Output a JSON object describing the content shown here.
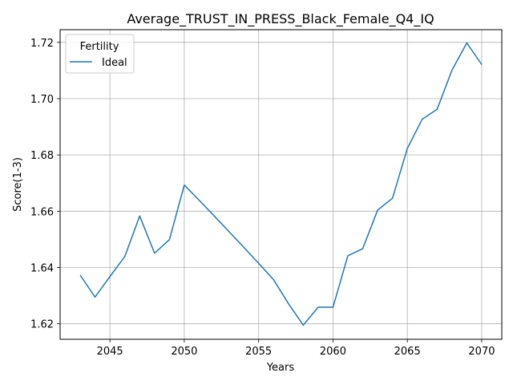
{
  "chart_data": {
    "type": "line",
    "title": "Average_TRUST_IN_PRESS_Black_Female_Q4_IQ",
    "xlabel": "Years",
    "ylabel": "Score(1-3)",
    "xlim": [
      2041.65,
      2071.35
    ],
    "ylim": [
      1.6145,
      1.7245
    ],
    "xticks": [
      2045,
      2050,
      2055,
      2060,
      2065,
      2070
    ],
    "yticks": [
      1.62,
      1.64,
      1.66,
      1.68,
      1.7,
      1.72
    ],
    "ytick_labels": [
      "1.62",
      "1.64",
      "1.66",
      "1.68",
      "1.70",
      "1.72"
    ],
    "grid": true,
    "legend": {
      "title": "Fertility",
      "placement": "top-left"
    },
    "series": [
      {
        "name": "Ideal",
        "color": "#1f77b4",
        "x": [
          2043,
          2044,
          2045,
          2046,
          2047,
          2048,
          2049,
          2050,
          2051,
          2052,
          2053,
          2054,
          2055,
          2056,
          2057,
          2058,
          2059,
          2060,
          2061,
          2062,
          2063,
          2064,
          2065,
          2066,
          2067,
          2068,
          2069,
          2070
        ],
        "y": [
          1.6373,
          1.6295,
          1.6368,
          1.6439,
          1.6583,
          1.6451,
          1.6499,
          1.6693,
          1.6639,
          1.6584,
          1.6528,
          1.6472,
          1.6415,
          1.6357,
          1.6272,
          1.6195,
          1.6259,
          1.6259,
          1.6442,
          1.6467,
          1.6604,
          1.6646,
          1.6823,
          1.6927,
          1.6962,
          1.7101,
          1.7198,
          1.7121
        ]
      }
    ]
  }
}
